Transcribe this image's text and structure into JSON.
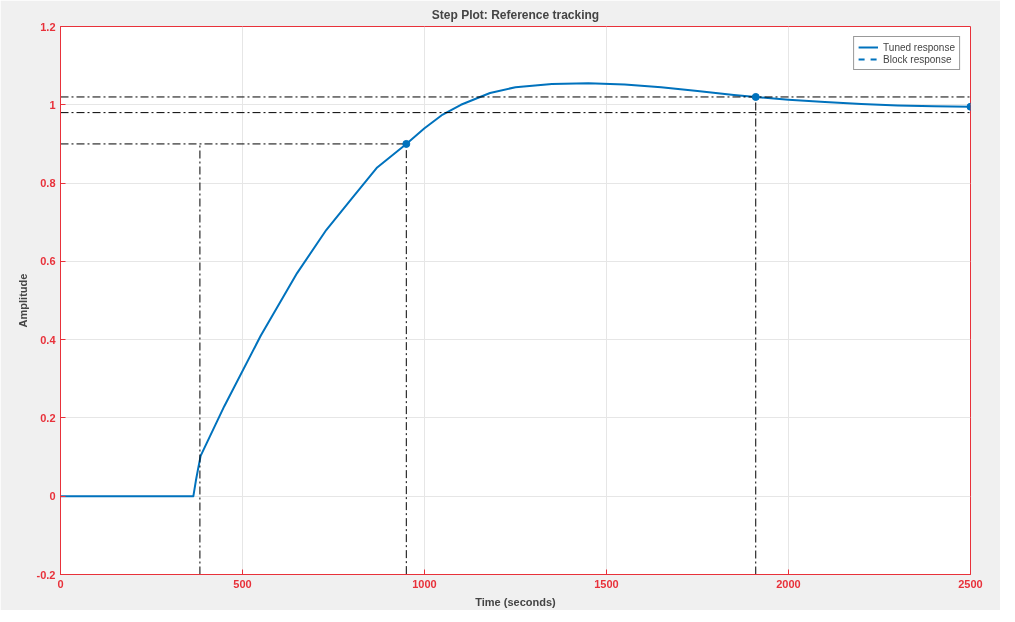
{
  "chart_data": {
    "type": "line",
    "title": "Step Plot: Reference tracking",
    "xlabel": "Time (seconds)",
    "ylabel": "Amplitude",
    "xlim": [
      0,
      2500
    ],
    "xticks": [
      0,
      500,
      1000,
      1500,
      2000,
      2500
    ],
    "ylim": [
      -0.2,
      1.2
    ],
    "yticks": [
      -0.2,
      0,
      0.2,
      0.4,
      0.6,
      0.8,
      1,
      1.2
    ],
    "grid": true,
    "legend": "top right",
    "series": [
      {
        "name": "Tuned response",
        "color": "#0072bd",
        "line_style": "solid",
        "x": [
          0,
          365,
          372,
          378,
          385,
          450,
          550,
          650,
          730,
          800,
          870,
          950,
          1000,
          1050,
          1100,
          1180,
          1250,
          1350,
          1450,
          1550,
          1650,
          1750,
          1850,
          1910,
          2000,
          2100,
          2200,
          2300,
          2400,
          2500
        ],
        "values": [
          0,
          0,
          0.04,
          0.07,
          0.103,
          0.23,
          0.41,
          0.57,
          0.68,
          0.76,
          0.84,
          0.9,
          0.94,
          0.975,
          1.0,
          1.03,
          1.045,
          1.053,
          1.055,
          1.052,
          1.045,
          1.035,
          1.025,
          1.02,
          1.013,
          1.007,
          1.002,
          0.998,
          0.996,
          0.995
        ]
      },
      {
        "name": "Block response",
        "color": "#0072bd",
        "line_style": "dashed"
      },
      {
        "color": "#000000",
        "line_style": "dashdot",
        "x": [
          0,
          950,
          950
        ],
        "values": [
          0.9,
          0.9,
          -0.2
        ]
      },
      {
        "color": "#000000",
        "line_style": "dashdot",
        "x": [
          383,
          383
        ],
        "values": [
          -0.2,
          0.9
        ]
      },
      {
        "color": "#000000",
        "line_style": "dashdot",
        "x": [
          0,
          2500
        ],
        "values": [
          1.02,
          1.02
        ]
      },
      {
        "color": "#000000",
        "line_style": "dashdot",
        "x": [
          0,
          2500
        ],
        "values": [
          0.98,
          0.98
        ]
      },
      {
        "color": "#000000",
        "line_style": "dashdot",
        "x": [
          1910,
          1910
        ],
        "values": [
          -0.2,
          1.02
        ]
      },
      {
        "type": "scatter",
        "color": "#0072bd",
        "marker": "circle",
        "x": [
          950,
          1910,
          2500
        ],
        "values": [
          0.9,
          1.02,
          0.995
        ]
      }
    ]
  }
}
